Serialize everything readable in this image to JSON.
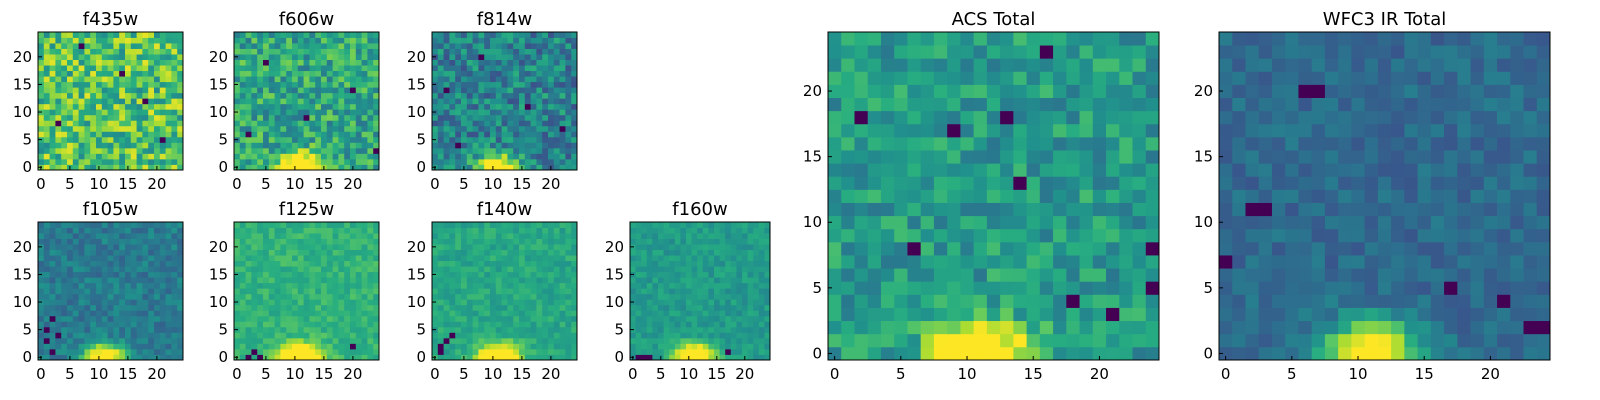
{
  "chart_data": [
    {
      "type": "heatmap",
      "title": "f435w",
      "grid_size": 25,
      "xticks": [
        0,
        5,
        10,
        15,
        20
      ],
      "yticks": [
        0,
        5,
        10,
        15,
        20
      ],
      "colormap": "viridis",
      "peak": "none",
      "center_level": 0.72,
      "noise_level": 0.25,
      "defects": [
        [
          3,
          8
        ],
        [
          14,
          17
        ],
        [
          21,
          5
        ],
        [
          7,
          22
        ],
        [
          18,
          12
        ]
      ]
    },
    {
      "type": "heatmap",
      "title": "f606w",
      "grid_size": 25,
      "xticks": [
        0,
        5,
        10,
        15,
        20
      ],
      "yticks": [
        0,
        5,
        10,
        15,
        20
      ],
      "colormap": "viridis",
      "peak": "bottom-center",
      "center_level": 0.6,
      "noise_level": 0.2,
      "defects": [
        [
          5,
          19
        ],
        [
          12,
          9
        ],
        [
          20,
          14
        ],
        [
          2,
          6
        ],
        [
          24,
          3
        ]
      ]
    },
    {
      "type": "heatmap",
      "title": "f814w",
      "grid_size": 25,
      "xticks": [
        0,
        5,
        10,
        15,
        20
      ],
      "yticks": [
        0,
        5,
        10,
        15,
        20
      ],
      "colormap": "viridis",
      "peak": "bottom-center",
      "center_level": 0.45,
      "noise_level": 0.2,
      "defects": [
        [
          2,
          14
        ],
        [
          8,
          20
        ],
        [
          16,
          11
        ],
        [
          22,
          7
        ],
        [
          4,
          4
        ]
      ]
    },
    {
      "type": "heatmap",
      "title": "f105w",
      "grid_size": 25,
      "xticks": [
        0,
        5,
        10,
        15,
        20
      ],
      "yticks": [
        0,
        5,
        10,
        15,
        20
      ],
      "colormap": "viridis",
      "peak": "bottom-center",
      "center_level": 0.42,
      "noise_level": 0.1,
      "defects": [
        [
          1,
          3
        ],
        [
          2,
          1
        ],
        [
          3,
          4
        ],
        [
          1,
          5
        ],
        [
          2,
          7
        ]
      ]
    },
    {
      "type": "heatmap",
      "title": "f125w",
      "grid_size": 25,
      "xticks": [
        0,
        5,
        10,
        15,
        20
      ],
      "yticks": [
        0,
        5,
        10,
        15,
        20
      ],
      "colormap": "viridis",
      "peak": "bottom-center",
      "center_level": 0.65,
      "noise_level": 0.08,
      "defects": [
        [
          2,
          0
        ],
        [
          3,
          1
        ],
        [
          4,
          0
        ],
        [
          20,
          2
        ]
      ]
    },
    {
      "type": "heatmap",
      "title": "f140w",
      "grid_size": 25,
      "xticks": [
        0,
        5,
        10,
        15,
        20
      ],
      "yticks": [
        0,
        5,
        10,
        15,
        20
      ],
      "colormap": "viridis",
      "peak": "bottom-center",
      "center_level": 0.6,
      "noise_level": 0.08,
      "defects": [
        [
          1,
          2
        ],
        [
          2,
          3
        ],
        [
          3,
          4
        ],
        [
          1,
          1
        ]
      ]
    },
    {
      "type": "heatmap",
      "title": "f160w",
      "grid_size": 25,
      "xticks": [
        0,
        5,
        10,
        15,
        20
      ],
      "yticks": [
        0,
        5,
        10,
        15,
        20
      ],
      "colormap": "viridis",
      "peak": "bottom-center",
      "center_level": 0.55,
      "noise_level": 0.08,
      "defects": [
        [
          1,
          0
        ],
        [
          2,
          0
        ],
        [
          3,
          0
        ],
        [
          17,
          1
        ]
      ]
    },
    {
      "type": "heatmap",
      "title": "ACS Total",
      "grid_size": 25,
      "xticks": [
        0,
        5,
        10,
        15,
        20
      ],
      "yticks": [
        0,
        5,
        10,
        15,
        20
      ],
      "colormap": "viridis",
      "peak": "bottom-center",
      "center_level": 0.55,
      "noise_level": 0.15,
      "defects": [
        [
          16,
          23
        ],
        [
          2,
          18
        ],
        [
          9,
          17
        ],
        [
          13,
          18
        ],
        [
          18,
          4
        ],
        [
          24,
          8
        ],
        [
          24,
          5
        ],
        [
          14,
          13
        ],
        [
          6,
          8
        ],
        [
          21,
          3
        ]
      ]
    },
    {
      "type": "heatmap",
      "title": "WFC3 IR Total",
      "grid_size": 25,
      "xticks": [
        0,
        5,
        10,
        15,
        20
      ],
      "yticks": [
        0,
        5,
        10,
        15,
        20
      ],
      "colormap": "viridis",
      "peak": "bottom-center",
      "center_level": 0.35,
      "noise_level": 0.08,
      "defects": [
        [
          6,
          20
        ],
        [
          7,
          20
        ],
        [
          3,
          11
        ],
        [
          2,
          11
        ],
        [
          17,
          5
        ],
        [
          21,
          4
        ],
        [
          23,
          2
        ],
        [
          24,
          2
        ],
        [
          0,
          7
        ]
      ]
    }
  ]
}
